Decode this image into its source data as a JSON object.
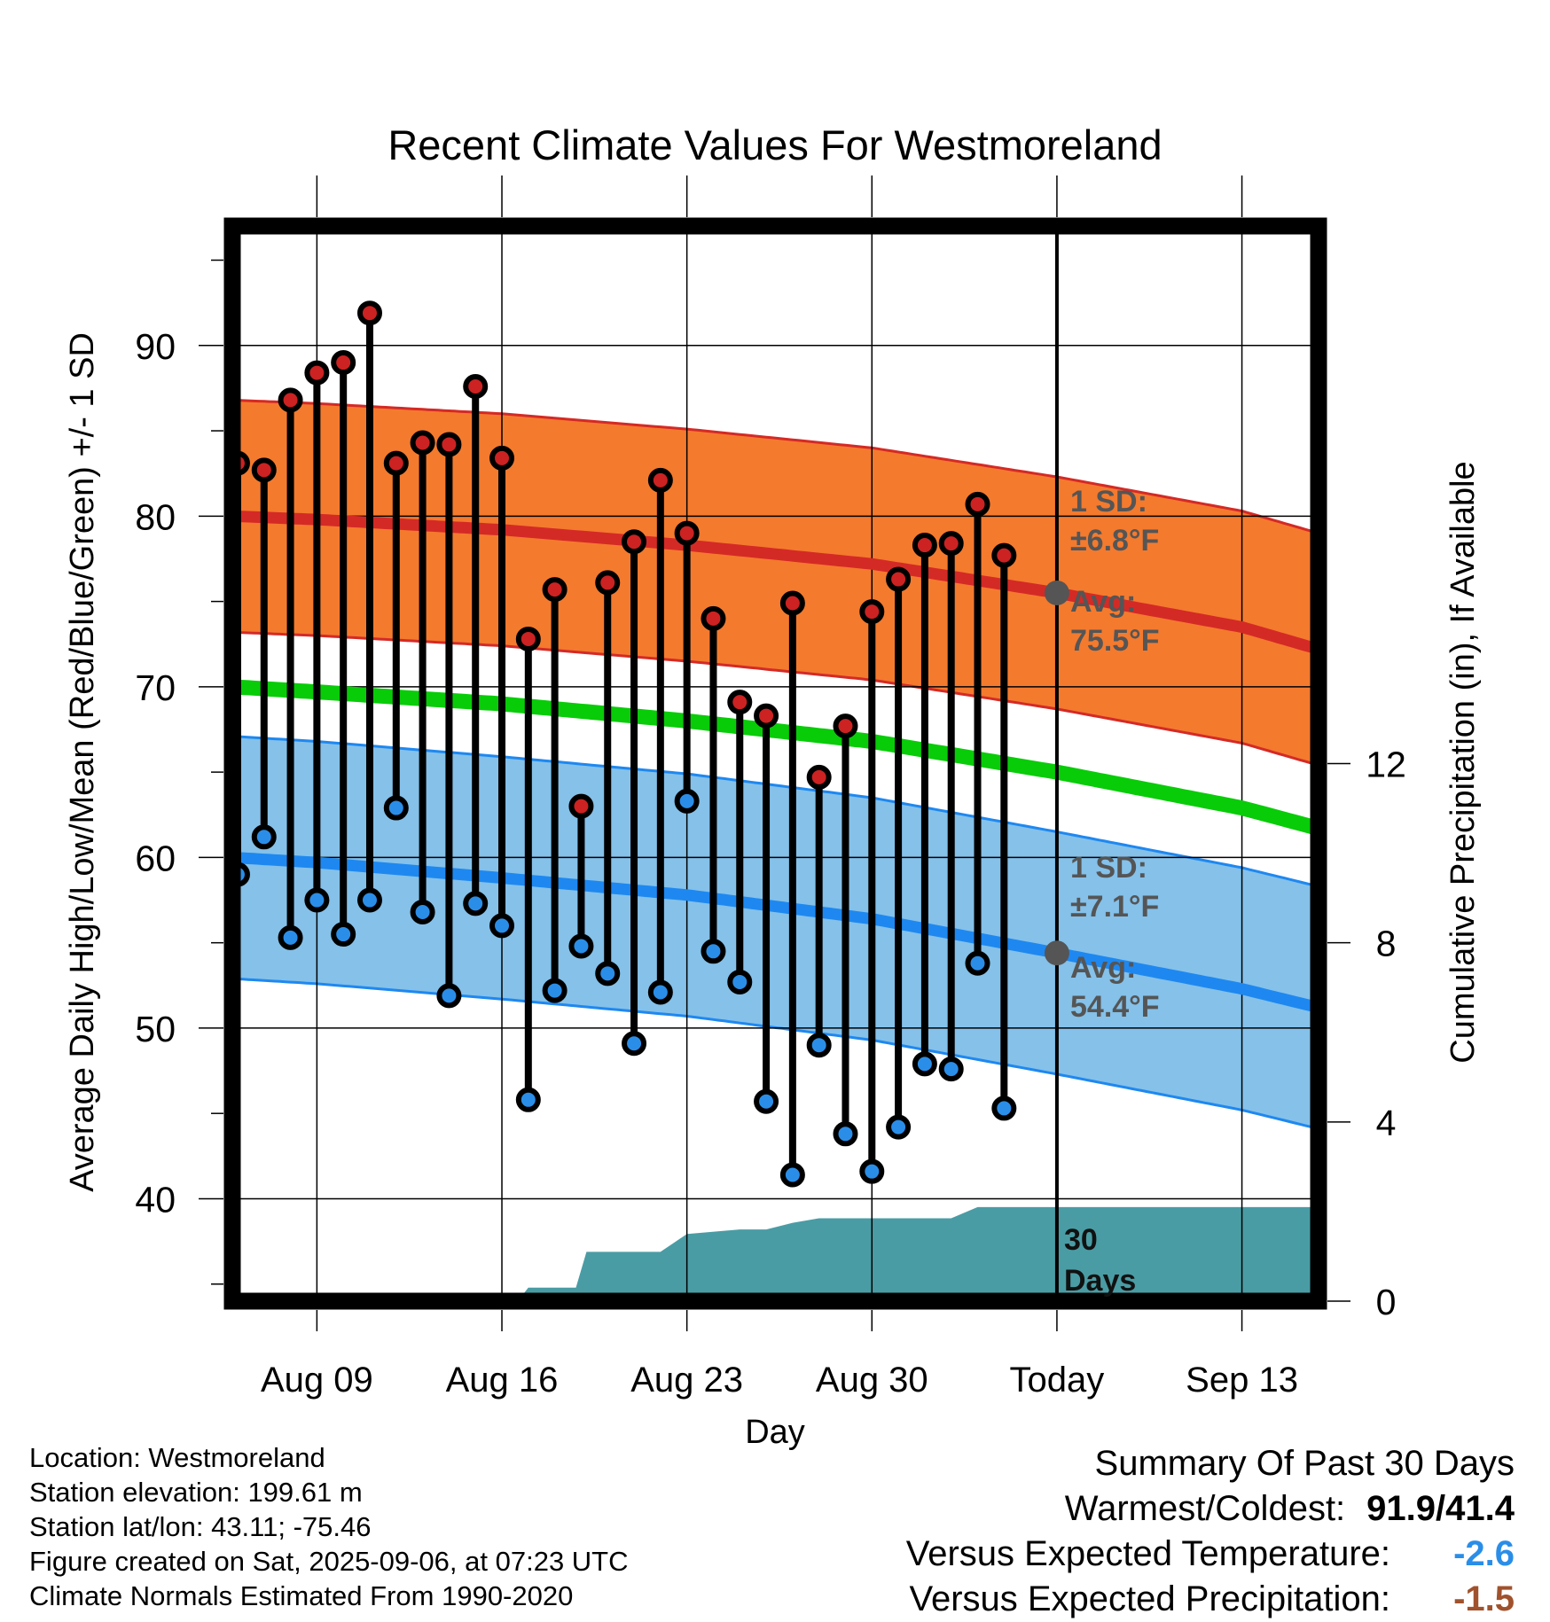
{
  "chart_data": {
    "type": "line",
    "title": "Recent Climate Values For Westmoreland",
    "xlabel": "Day",
    "ylabel_left": "Average Daily High/Low/Mean (Red/Blue/Green) +/- 1 SD",
    "ylabel_right": "Cumulative Precipitation (in), If Available",
    "ylim_left": [
      34,
      97
    ],
    "ylim_right": [
      0,
      24
    ],
    "y_ticks_left": [
      40,
      50,
      60,
      70,
      80,
      90
    ],
    "y_ticks_right": [
      0,
      4,
      8,
      12
    ],
    "x_ticks": [
      {
        "day": 9,
        "label": "Aug 09"
      },
      {
        "day": 16,
        "label": "Aug 16"
      },
      {
        "day": 23,
        "label": "Aug 23"
      },
      {
        "day": 30,
        "label": "Aug 30"
      },
      {
        "day": 37,
        "label": "Today"
      },
      {
        "day": 44,
        "label": "Sep 13"
      }
    ],
    "xlim": [
      5.8,
      46.9
    ],
    "today_day": 37,
    "highs": [
      {
        "day": 6,
        "value": 83.1
      },
      {
        "day": 7,
        "value": 82.7
      },
      {
        "day": 8,
        "value": 86.8
      },
      {
        "day": 9,
        "value": 88.4
      },
      {
        "day": 10,
        "value": 89.0
      },
      {
        "day": 11,
        "value": 91.9
      },
      {
        "day": 12,
        "value": 83.1
      },
      {
        "day": 13,
        "value": 84.3
      },
      {
        "day": 14,
        "value": 84.2
      },
      {
        "day": 15,
        "value": 87.6
      },
      {
        "day": 16,
        "value": 83.4
      },
      {
        "day": 17,
        "value": 72.8
      },
      {
        "day": 18,
        "value": 75.7
      },
      {
        "day": 19,
        "value": 63.0
      },
      {
        "day": 20,
        "value": 76.1
      },
      {
        "day": 21,
        "value": 78.5
      },
      {
        "day": 22,
        "value": 82.1
      },
      {
        "day": 23,
        "value": 79.0
      },
      {
        "day": 24,
        "value": 74.0
      },
      {
        "day": 25,
        "value": 69.1
      },
      {
        "day": 26,
        "value": 68.3
      },
      {
        "day": 27,
        "value": 74.9
      },
      {
        "day": 28,
        "value": 64.7
      },
      {
        "day": 29,
        "value": 67.7
      },
      {
        "day": 30,
        "value": 74.4
      },
      {
        "day": 31,
        "value": 76.3
      },
      {
        "day": 32,
        "value": 78.3
      },
      {
        "day": 33,
        "value": 78.4
      },
      {
        "day": 34,
        "value": 80.7
      },
      {
        "day": 35,
        "value": 77.7
      }
    ],
    "lows": [
      {
        "day": 6,
        "value": 59.0
      },
      {
        "day": 7,
        "value": 61.2
      },
      {
        "day": 8,
        "value": 55.3
      },
      {
        "day": 9,
        "value": 57.5
      },
      {
        "day": 10,
        "value": 55.5
      },
      {
        "day": 11,
        "value": 57.5
      },
      {
        "day": 12,
        "value": 62.9
      },
      {
        "day": 13,
        "value": 56.8
      },
      {
        "day": 14,
        "value": 51.9
      },
      {
        "day": 15,
        "value": 57.3
      },
      {
        "day": 16,
        "value": 56.0
      },
      {
        "day": 17,
        "value": 45.8
      },
      {
        "day": 18,
        "value": 52.2
      },
      {
        "day": 19,
        "value": 54.8
      },
      {
        "day": 20,
        "value": 53.2
      },
      {
        "day": 21,
        "value": 49.1
      },
      {
        "day": 22,
        "value": 52.1
      },
      {
        "day": 23,
        "value": 63.3
      },
      {
        "day": 24,
        "value": 54.5
      },
      {
        "day": 25,
        "value": 52.7
      },
      {
        "day": 26,
        "value": 45.7
      },
      {
        "day": 27,
        "value": 41.4
      },
      {
        "day": 28,
        "value": 49.0
      },
      {
        "day": 29,
        "value": 43.8
      },
      {
        "day": 30,
        "value": 41.6
      },
      {
        "day": 31,
        "value": 44.2
      },
      {
        "day": 32,
        "value": 47.9
      },
      {
        "day": 33,
        "value": 47.6
      },
      {
        "day": 34,
        "value": 53.8
      },
      {
        "day": 35,
        "value": 45.3
      }
    ],
    "normal_high": [
      {
        "day": 5.8,
        "value": 80.0
      },
      {
        "day": 9,
        "value": 79.8
      },
      {
        "day": 16,
        "value": 79.2
      },
      {
        "day": 23,
        "value": 78.3
      },
      {
        "day": 30,
        "value": 77.2
      },
      {
        "day": 37,
        "value": 75.5
      },
      {
        "day": 44,
        "value": 73.5
      },
      {
        "day": 46.9,
        "value": 72.2
      }
    ],
    "normal_high_sd": 6.8,
    "normal_low": [
      {
        "day": 5.8,
        "value": 60.0
      },
      {
        "day": 9,
        "value": 59.7
      },
      {
        "day": 16,
        "value": 58.8
      },
      {
        "day": 23,
        "value": 57.8
      },
      {
        "day": 30,
        "value": 56.4
      },
      {
        "day": 37,
        "value": 54.4
      },
      {
        "day": 44,
        "value": 52.3
      },
      {
        "day": 46.9,
        "value": 51.2
      }
    ],
    "normal_low_sd": 7.1,
    "normal_mean": [
      {
        "day": 5.8,
        "value": 70.0
      },
      {
        "day": 9,
        "value": 69.7
      },
      {
        "day": 16,
        "value": 69.0
      },
      {
        "day": 23,
        "value": 68.0
      },
      {
        "day": 30,
        "value": 66.8
      },
      {
        "day": 37,
        "value": 65.0
      },
      {
        "day": 44,
        "value": 62.9
      },
      {
        "day": 46.9,
        "value": 61.7
      }
    ],
    "precip_cumulative": [
      {
        "day": 5.8,
        "value": 0
      },
      {
        "day": 16.6,
        "value": 0
      },
      {
        "day": 17.0,
        "value": 0.3
      },
      {
        "day": 18.8,
        "value": 0.3
      },
      {
        "day": 19.2,
        "value": 1.1
      },
      {
        "day": 22.0,
        "value": 1.1
      },
      {
        "day": 23.0,
        "value": 1.5
      },
      {
        "day": 25.0,
        "value": 1.6
      },
      {
        "day": 26.0,
        "value": 1.6
      },
      {
        "day": 27.0,
        "value": 1.75
      },
      {
        "day": 28.0,
        "value": 1.85
      },
      {
        "day": 33.0,
        "value": 1.85
      },
      {
        "day": 34.0,
        "value": 2.1
      },
      {
        "day": 46.9,
        "value": 2.1
      }
    ],
    "annotations": {
      "high_sd_label": "1 SD:",
      "high_sd_value": "±6.8°F",
      "high_avg_label": "Avg:",
      "high_avg_value": "75.5°F",
      "low_sd_label": "1 SD:",
      "low_sd_value": "±7.1°F",
      "low_avg_label": "Avg:",
      "low_avg_value": "54.4°F",
      "days_label": "30",
      "days_label2": "Days"
    },
    "colors": {
      "high_band": "#f47a2e",
      "high_line": "#d42a26",
      "low_band": "#85c1e9",
      "low_line": "#1e88f0",
      "mean_line": "#08cc08",
      "precip": "#4a9ca4",
      "high_marker": "#cc2222",
      "low_marker": "#2a8ee8",
      "annotation": "#555555"
    },
    "grid": true
  },
  "footer": {
    "location": "Location: Westmoreland",
    "elevation": "Station elevation: 199.61 m",
    "latlon": "Station lat/lon: 43.11; -75.46",
    "created": "Figure created on Sat, 2025-09-06, at 07:23 UTC",
    "normals": "Climate Normals Estimated From 1990-2020"
  },
  "summary": {
    "title": "Summary Of Past 30 Days",
    "warm_cold_label": "Warmest/Coldest:",
    "warm_cold_value": "91.9/41.4",
    "temp_label": "Versus Expected Temperature:",
    "temp_value": "-2.6",
    "temp_color": "#2a8ee8",
    "precip_label": "Versus Expected Precipitation:",
    "precip_value": "-1.5",
    "precip_color": "#a0522d"
  }
}
